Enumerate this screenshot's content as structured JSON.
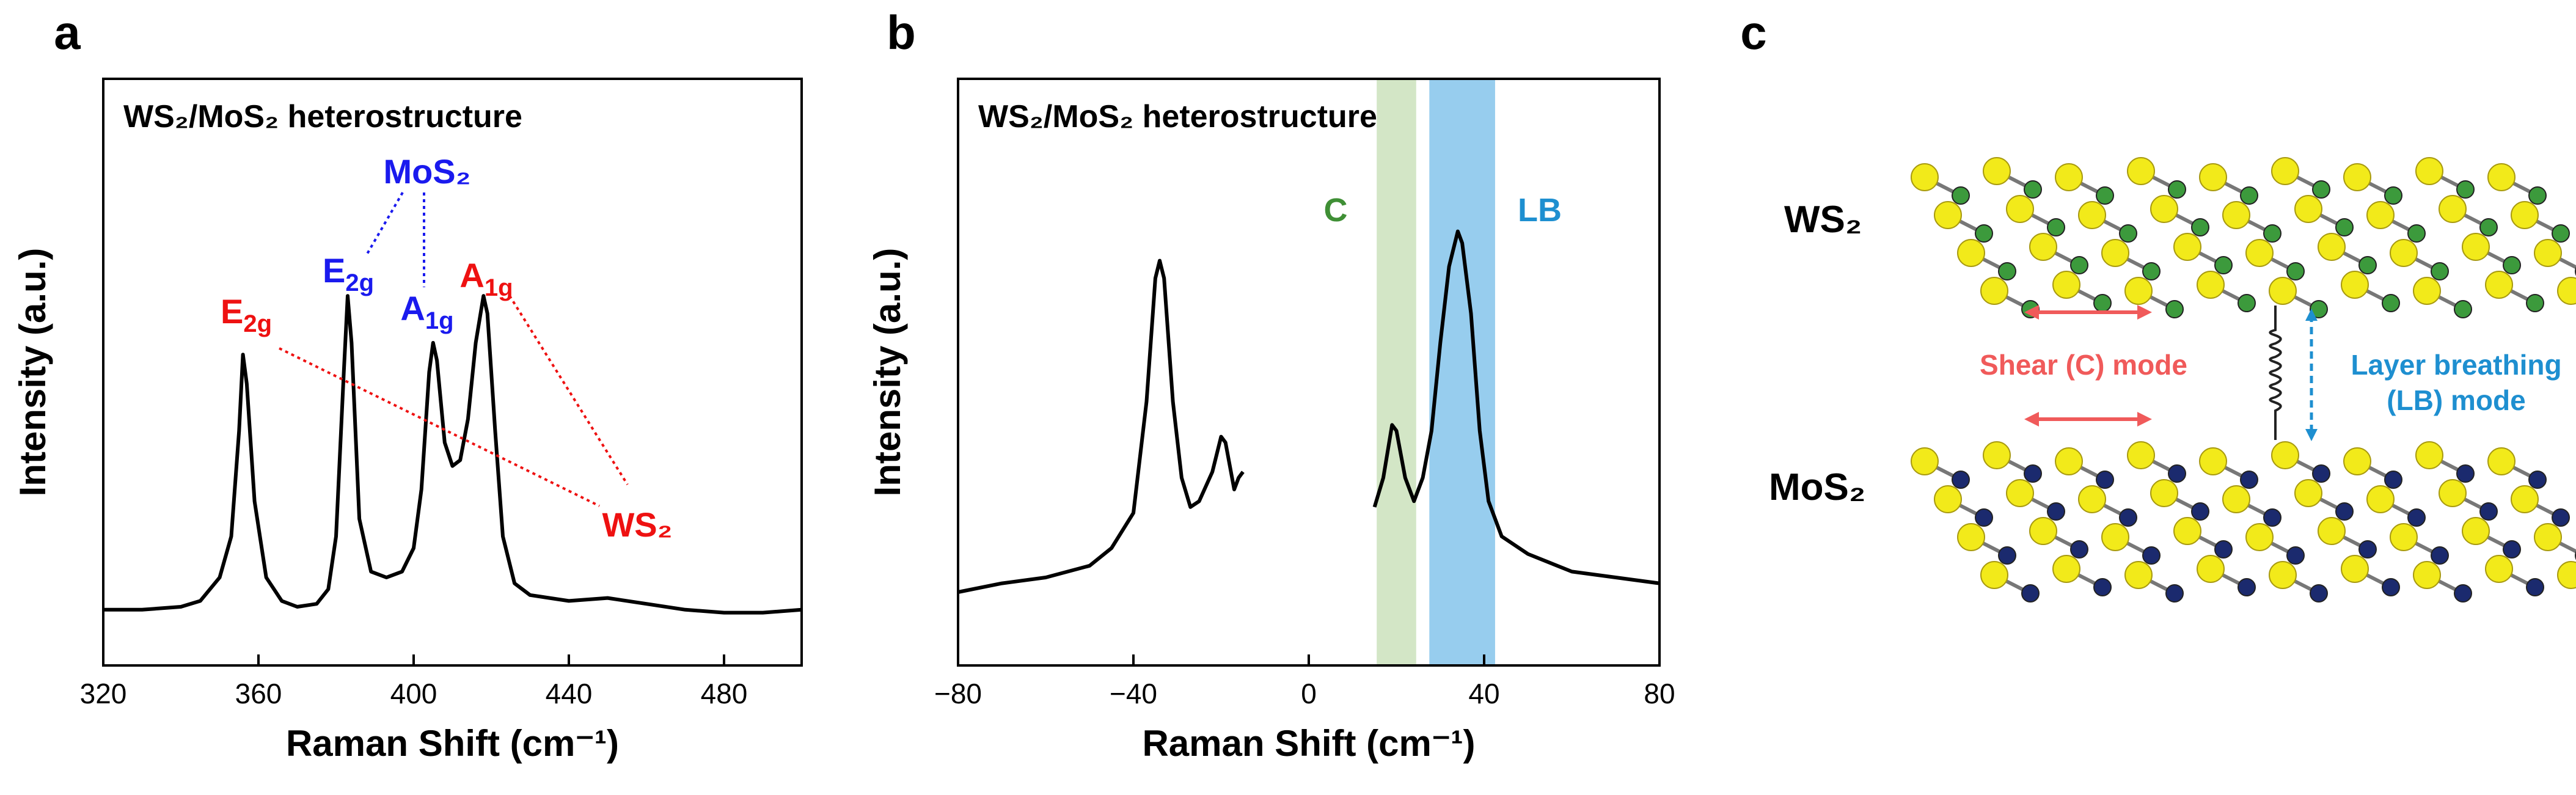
{
  "panels": [
    "a",
    "b",
    "c"
  ],
  "chart_data": [
    {
      "type": "line",
      "title": "WS₂/MoS₂ heterostructure",
      "xlabel": "Raman Shift (cm⁻¹)",
      "ylabel": "Intensity (a.u.)",
      "xlim": [
        320,
        500
      ],
      "xticks": [
        320,
        360,
        400,
        440,
        480
      ],
      "ylim": [
        0,
        100
      ],
      "color": "#000000",
      "x": [
        320,
        330,
        340,
        345,
        350,
        353,
        355,
        356,
        357,
        359,
        362,
        366,
        370,
        375,
        378,
        380,
        382,
        383,
        384,
        386,
        389,
        393,
        397,
        400,
        402,
        404,
        405,
        406,
        408,
        410,
        412,
        414,
        416,
        418,
        419,
        421,
        423,
        426,
        430,
        440,
        450,
        460,
        470,
        480,
        490,
        500
      ],
      "values": [
        9.5,
        9.5,
        10,
        11,
        15,
        22,
        40,
        53,
        48,
        28,
        15,
        11,
        10,
        10.5,
        13,
        22,
        50,
        63,
        55,
        25,
        16,
        15,
        16,
        20,
        30,
        50,
        55,
        52,
        38,
        34,
        35,
        42,
        55,
        63,
        60,
        40,
        22,
        14,
        12,
        11,
        11.5,
        10.5,
        9.5,
        9,
        9,
        9.5
      ],
      "annotations": [
        {
          "text": "MoS₂",
          "color": "#1a1aee"
        },
        {
          "base": "E",
          "sub": "2g",
          "color": "#1a1aee"
        },
        {
          "base": "A",
          "sub": "1g",
          "color": "#1a1aee"
        },
        {
          "base": "E",
          "sub": "2g",
          "color": "#ee1111"
        },
        {
          "base": "A",
          "sub": "1g",
          "color": "#ee1111"
        },
        {
          "text": "WS₂",
          "color": "#ee1111"
        }
      ]
    },
    {
      "type": "line",
      "title": "WS₂/MoS₂ heterostructure",
      "xlabel": "Raman Shift (cm⁻¹)",
      "ylabel": "Intensity (a.u.)",
      "xlim": [
        -80,
        80
      ],
      "xticks": [
        {
          "value": -80,
          "label": "−80"
        },
        {
          "value": -40,
          "label": "−40"
        },
        0,
        40,
        80
      ],
      "ylim": [
        0,
        100
      ],
      "color": "#000000",
      "x": [
        -80,
        -70,
        -60,
        -50,
        -45,
        -40,
        -37,
        -35,
        -34,
        -33,
        -31,
        -29,
        -27,
        -25,
        -22,
        -20,
        -19,
        -17,
        -16,
        -15,
        0,
        15,
        17,
        19,
        20,
        22,
        24,
        26,
        28,
        30,
        32,
        34,
        35,
        37,
        39,
        41,
        44,
        50,
        60,
        70,
        80
      ],
      "values": [
        12.5,
        14,
        15,
        17,
        20,
        26,
        45,
        66,
        69,
        66,
        45,
        32,
        27,
        28,
        33,
        39,
        38,
        30,
        32,
        33,
        null,
        27,
        32,
        41,
        40,
        32,
        28,
        32,
        40,
        55,
        68,
        74,
        72,
        60,
        40,
        28,
        22,
        19,
        16,
        15,
        14
      ],
      "bands": [
        {
          "label": "C",
          "range": [
            15.5,
            24.5
          ],
          "color": "#d3e6c6",
          "label_color": "#3f8f35"
        },
        {
          "label": "LB",
          "range": [
            27.5,
            42.5
          ],
          "color": "#97cdee",
          "label_color": "#1e8fd0"
        }
      ]
    }
  ],
  "diagram": {
    "top_label": "WS₂",
    "bottom_label": "MoS₂",
    "shear": "Shear (C) mode",
    "breathing": [
      "Layer breathing",
      "(LB) mode"
    ]
  }
}
